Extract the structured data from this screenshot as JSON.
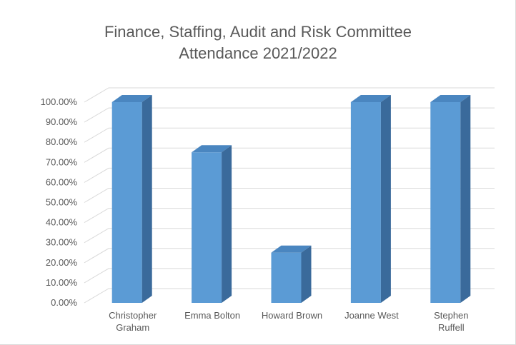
{
  "chart_data": {
    "type": "bar",
    "title": "Finance, Staffing, Audit and Risk Committee\nAttendance 2021/2022",
    "categories": [
      "Christopher Graham",
      "Emma Bolton",
      "Howard Brown",
      "Joanne West",
      "Stephen Ruffell"
    ],
    "category_lines": [
      [
        "Christopher",
        "Graham"
      ],
      [
        "Emma Bolton"
      ],
      [
        "Howard Brown"
      ],
      [
        "Joanne West"
      ],
      [
        "Stephen",
        "Ruffell"
      ]
    ],
    "values": [
      100,
      75,
      25,
      100,
      100
    ],
    "ylim": [
      0,
      100
    ],
    "yticks": [
      "0.00%",
      "10.00%",
      "20.00%",
      "30.00%",
      "40.00%",
      "50.00%",
      "60.00%",
      "70.00%",
      "80.00%",
      "90.00%",
      "100.00%"
    ],
    "xlabel": "",
    "ylabel": "",
    "grid": true,
    "legend": "none",
    "bar_color": "#5b9bd5"
  }
}
